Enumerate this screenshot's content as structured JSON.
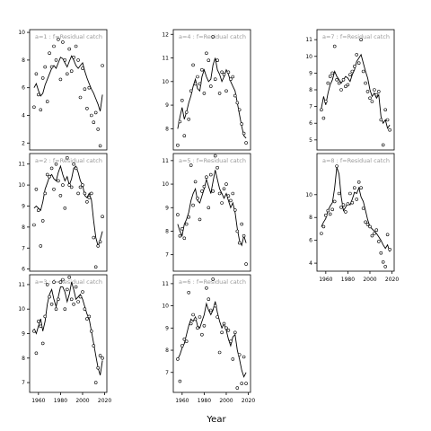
{
  "figure": {
    "xlabel": "Year"
  },
  "chart_data": [
    {
      "type": "line",
      "label": "a=1 : f=Residual catch",
      "xlim": [
        1952,
        2022
      ],
      "ylim": [
        1.5,
        10.2
      ],
      "yticks": [
        2,
        4,
        6,
        8,
        10
      ],
      "xticks": [],
      "x": [
        1956,
        1958,
        1960,
        1962,
        1964,
        1966,
        1968,
        1970,
        1972,
        1974,
        1976,
        1978,
        1980,
        1982,
        1984,
        1986,
        1988,
        1990,
        1992,
        1994,
        1996,
        1998,
        2000,
        2002,
        2004,
        2006,
        2008,
        2010,
        2012,
        2014,
        2016,
        2018
      ],
      "fit": [
        6.0,
        6.3,
        5.8,
        5.4,
        5.6,
        6.2,
        6.6,
        7.0,
        7.4,
        7.6,
        7.4,
        7.8,
        8.2,
        8.1,
        7.8,
        7.5,
        7.9,
        8.3,
        8.0,
        7.6,
        7.4,
        7.6,
        7.8,
        7.2,
        6.7,
        6.3,
        5.9,
        5.6,
        5.2,
        4.8,
        4.3,
        5.5
      ],
      "obs": [
        4.6,
        7.0,
        5.5,
        4.4,
        6.7,
        7.5,
        5.0,
        8.5,
        7.5,
        9.0,
        8.0,
        9.5,
        6.6,
        9.3,
        8.0,
        7.0,
        8.8,
        7.2,
        8.2,
        9.0,
        8.0,
        5.3,
        7.4,
        5.9,
        4.5,
        6.0,
        4.0,
        3.5,
        4.2,
        3.0,
        1.8,
        7.6
      ]
    },
    {
      "type": "line",
      "label": "a=2 : f=Residual catch",
      "xlim": [
        1952,
        2022
      ],
      "ylim": [
        5.9,
        11.5
      ],
      "yticks": [
        6,
        7,
        8,
        9,
        10,
        11
      ],
      "xticks": [],
      "x": [
        1956,
        1958,
        1960,
        1962,
        1964,
        1966,
        1968,
        1970,
        1972,
        1974,
        1976,
        1978,
        1980,
        1982,
        1984,
        1986,
        1988,
        1990,
        1992,
        1994,
        1996,
        1998,
        2000,
        2002,
        2004,
        2006,
        2008,
        2010,
        2012,
        2014,
        2016,
        2018
      ],
      "fit": [
        8.9,
        9.0,
        8.9,
        8.8,
        9.2,
        9.8,
        10.1,
        10.4,
        10.5,
        10.3,
        10.2,
        10.6,
        10.9,
        10.5,
        10.2,
        10.4,
        10.0,
        10.3,
        10.8,
        10.9,
        10.6,
        10.2,
        10.0,
        9.5,
        9.4,
        9.6,
        9.3,
        8.3,
        7.5,
        7.1,
        7.4,
        7.8
      ],
      "obs": [
        8.1,
        9.8,
        8.8,
        7.1,
        8.3,
        9.6,
        10.5,
        10.4,
        10.8,
        9.8,
        11.0,
        10.2,
        9.5,
        10.0,
        8.9,
        11.3,
        10.0,
        9.9,
        11.0,
        10.8,
        9.6,
        9.9,
        10.0,
        9.6,
        9.2,
        9.4,
        9.6,
        7.5,
        6.1,
        7.1,
        7.3,
        8.5
      ]
    },
    {
      "type": "line",
      "label": "a=3 : f=Residual catch",
      "xlim": [
        1952,
        2022
      ],
      "ylim": [
        6.6,
        11.4
      ],
      "yticks": [
        7,
        8,
        9,
        10,
        11
      ],
      "xticks": [
        1960,
        1980,
        2000,
        2020
      ],
      "x": [
        1956,
        1958,
        1960,
        1962,
        1964,
        1966,
        1968,
        1970,
        1972,
        1974,
        1976,
        1978,
        1980,
        1982,
        1984,
        1986,
        1988,
        1990,
        1992,
        1994,
        1996,
        1998,
        2000,
        2002,
        2004,
        2006,
        2008,
        2010,
        2012,
        2014,
        2016,
        2018
      ],
      "fit": [
        9.2,
        9.0,
        9.3,
        9.6,
        9.1,
        9.5,
        10.2,
        10.6,
        10.8,
        10.4,
        10.1,
        10.5,
        10.9,
        10.9,
        10.7,
        10.3,
        10.6,
        11.1,
        10.8,
        10.4,
        10.5,
        10.6,
        10.4,
        10.1,
        9.8,
        9.6,
        9.1,
        8.6,
        8.1,
        7.6,
        7.3,
        7.9
      ],
      "obs": [
        9.1,
        8.2,
        9.5,
        9.3,
        8.6,
        9.7,
        11.0,
        10.5,
        10.2,
        11.1,
        10.0,
        10.4,
        11.1,
        11.2,
        10.0,
        10.8,
        11.3,
        10.4,
        10.2,
        10.9,
        10.3,
        10.5,
        10.7,
        10.0,
        9.6,
        9.7,
        9.1,
        8.5,
        7.0,
        7.6,
        8.1,
        8.0
      ]
    },
    {
      "type": "line",
      "label": "a=4 : f=Residual catch",
      "xlim": [
        1952,
        2022
      ],
      "ylim": [
        7.1,
        12.2
      ],
      "yticks": [
        8,
        9,
        10,
        11,
        12
      ],
      "xticks": [],
      "x": [
        1956,
        1958,
        1960,
        1962,
        1964,
        1966,
        1968,
        1970,
        1972,
        1974,
        1976,
        1978,
        1980,
        1982,
        1984,
        1986,
        1988,
        1990,
        1992,
        1994,
        1996,
        1998,
        2000,
        2002,
        2004,
        2006,
        2008,
        2010,
        2012,
        2014,
        2016,
        2018
      ],
      "fit": [
        8.0,
        8.5,
        8.9,
        8.4,
        8.7,
        9.1,
        9.4,
        9.8,
        10.1,
        9.7,
        9.6,
        10.2,
        10.5,
        10.2,
        10.0,
        10.1,
        10.7,
        11.0,
        10.5,
        10.3,
        10.0,
        10.2,
        10.5,
        10.3,
        10.0,
        9.8,
        9.6,
        9.1,
        8.6,
        8.1,
        7.7,
        7.6
      ],
      "obs": [
        7.3,
        8.3,
        9.2,
        7.7,
        8.7,
        8.4,
        9.6,
        10.7,
        9.9,
        10.2,
        9.9,
        10.5,
        9.5,
        11.2,
        10.9,
        9.8,
        11.9,
        10.1,
        10.9,
        9.5,
        10.4,
        10.3,
        9.6,
        10.4,
        10.1,
        10.2,
        9.4,
        9.1,
        8.8,
        8.2,
        7.8,
        7.4
      ]
    },
    {
      "type": "line",
      "label": "a=5 : f=Residual catch",
      "xlim": [
        1952,
        2022
      ],
      "ylim": [
        6.3,
        11.3
      ],
      "yticks": [
        7,
        8,
        9,
        10,
        11
      ],
      "xticks": [],
      "x": [
        1956,
        1958,
        1960,
        1962,
        1964,
        1966,
        1968,
        1970,
        1972,
        1974,
        1976,
        1978,
        1980,
        1982,
        1984,
        1986,
        1988,
        1990,
        1992,
        1994,
        1996,
        1998,
        2000,
        2002,
        2004,
        2006,
        2008,
        2010,
        2012,
        2014,
        2016,
        2018
      ],
      "fit": [
        8.3,
        8.0,
        7.8,
        8.3,
        8.5,
        8.8,
        9.3,
        9.6,
        9.8,
        9.3,
        9.2,
        9.5,
        9.8,
        10.2,
        9.9,
        9.6,
        10.1,
        10.6,
        10.2,
        9.8,
        9.6,
        9.4,
        9.6,
        9.3,
        9.0,
        9.2,
        8.8,
        8.1,
        7.6,
        7.4,
        7.8,
        7.5
      ],
      "obs": [
        8.7,
        7.8,
        8.1,
        7.7,
        8.3,
        8.6,
        10.8,
        9.1,
        10.1,
        9.4,
        8.5,
        9.7,
        9.9,
        10.3,
        9.0,
        10.4,
        9.7,
        11.2,
        10.7,
        9.6,
        9.2,
        9.8,
        10.0,
        9.5,
        9.3,
        9.6,
        8.9,
        8.0,
        7.5,
        8.3,
        7.8,
        6.6
      ]
    },
    {
      "type": "line",
      "label": "a=6 : f=Residual catch",
      "xlim": [
        1952,
        2022
      ],
      "ylim": [
        6.1,
        11.4
      ],
      "yticks": [
        7,
        8,
        9,
        10,
        11
      ],
      "xticks": [
        1960,
        1980,
        2000,
        2020
      ],
      "x": [
        1956,
        1958,
        1960,
        1962,
        1964,
        1966,
        1968,
        1970,
        1972,
        1974,
        1976,
        1978,
        1980,
        1982,
        1984,
        1986,
        1988,
        1990,
        1992,
        1994,
        1996,
        1998,
        2000,
        2002,
        2004,
        2006,
        2008,
        2010,
        2012,
        2014,
        2016,
        2018
      ],
      "fit": [
        7.6,
        7.8,
        8.1,
        8.3,
        8.7,
        9.1,
        9.4,
        9.3,
        9.5,
        9.1,
        9.0,
        9.3,
        9.6,
        10.1,
        9.8,
        9.6,
        9.8,
        10.2,
        9.7,
        9.3,
        9.0,
        9.2,
        8.9,
        8.5,
        8.2,
        8.6,
        8.7,
        8.0,
        7.6,
        7.1,
        6.8,
        7.0
      ],
      "obs": [
        7.6,
        6.6,
        8.2,
        8.5,
        8.4,
        10.6,
        9.2,
        9.6,
        9.4,
        9.0,
        9.5,
        8.7,
        9.1,
        10.8,
        10.3,
        9.8,
        11.2,
        10.0,
        9.5,
        7.9,
        8.8,
        9.2,
        9.0,
        8.9,
        8.4,
        7.6,
        8.8,
        6.3,
        7.8,
        6.5,
        7.7,
        6.5
      ]
    },
    {
      "type": "line",
      "label": "a=7 : f=Residual catch",
      "xlim": [
        1952,
        2022
      ],
      "ylim": [
        4.4,
        11.6
      ],
      "yticks": [
        5,
        6,
        7,
        8,
        9,
        10,
        11
      ],
      "xticks": [],
      "x": [
        1956,
        1958,
        1960,
        1962,
        1964,
        1966,
        1968,
        1970,
        1972,
        1974,
        1976,
        1978,
        1980,
        1982,
        1984,
        1986,
        1988,
        1990,
        1992,
        1994,
        1996,
        1998,
        2000,
        2002,
        2004,
        2006,
        2008,
        2010,
        2012,
        2014,
        2016,
        2018
      ],
      "fit": [
        6.9,
        7.6,
        7.1,
        7.8,
        8.3,
        8.6,
        9.1,
        8.8,
        8.6,
        8.4,
        8.6,
        8.8,
        8.7,
        8.5,
        8.9,
        9.2,
        9.7,
        9.9,
        10.1,
        9.6,
        9.1,
        8.7,
        8.0,
        7.6,
        7.8,
        7.5,
        7.7,
        6.4,
        6.0,
        6.2,
        5.7,
        5.9
      ],
      "obs": [
        6.8,
        6.3,
        7.3,
        8.4,
        8.8,
        9.0,
        10.6,
        8.6,
        8.4,
        8.0,
        8.6,
        8.2,
        8.3,
        8.9,
        9.1,
        9.4,
        10.1,
        9.6,
        11.0,
        9.1,
        8.4,
        7.9,
        7.5,
        7.3,
        8.0,
        7.7,
        7.9,
        6.2,
        4.7,
        6.8,
        6.2,
        5.6
      ]
    },
    {
      "type": "line",
      "label": "a=8 : f=Residual catch",
      "xlim": [
        1952,
        2022
      ],
      "ylim": [
        3.3,
        13.6
      ],
      "yticks": [
        4,
        6,
        8,
        10
      ],
      "xticks": [
        1960,
        1980,
        2000,
        2020
      ],
      "x": [
        1956,
        1958,
        1960,
        1962,
        1964,
        1966,
        1968,
        1970,
        1972,
        1974,
        1976,
        1978,
        1980,
        1982,
        1984,
        1986,
        1988,
        1990,
        1992,
        1994,
        1996,
        1998,
        2000,
        2002,
        2004,
        2006,
        2008,
        2010,
        2012,
        2014,
        2016,
        2018
      ],
      "fit": [
        7.2,
        7.6,
        7.9,
        8.6,
        9.0,
        9.3,
        10.6,
        12.4,
        11.8,
        9.8,
        8.6,
        8.9,
        9.3,
        9.1,
        9.6,
        10.2,
        10.1,
        10.6,
        9.8,
        9.4,
        8.6,
        7.8,
        7.2,
        7.0,
        6.8,
        6.6,
        6.3,
        6.0,
        5.6,
        5.3,
        5.6,
        5.0
      ],
      "obs": [
        6.6,
        7.2,
        8.2,
        8.6,
        8.3,
        8.7,
        9.4,
        12.5,
        10.1,
        8.9,
        9.1,
        8.5,
        9.2,
        10.1,
        9.3,
        10.6,
        9.6,
        11.1,
        10.6,
        8.8,
        7.6,
        7.4,
        7.2,
        6.4,
        6.6,
        6.9,
        5.9,
        4.9,
        4.1,
        3.7,
        6.5,
        5.2
      ]
    }
  ]
}
